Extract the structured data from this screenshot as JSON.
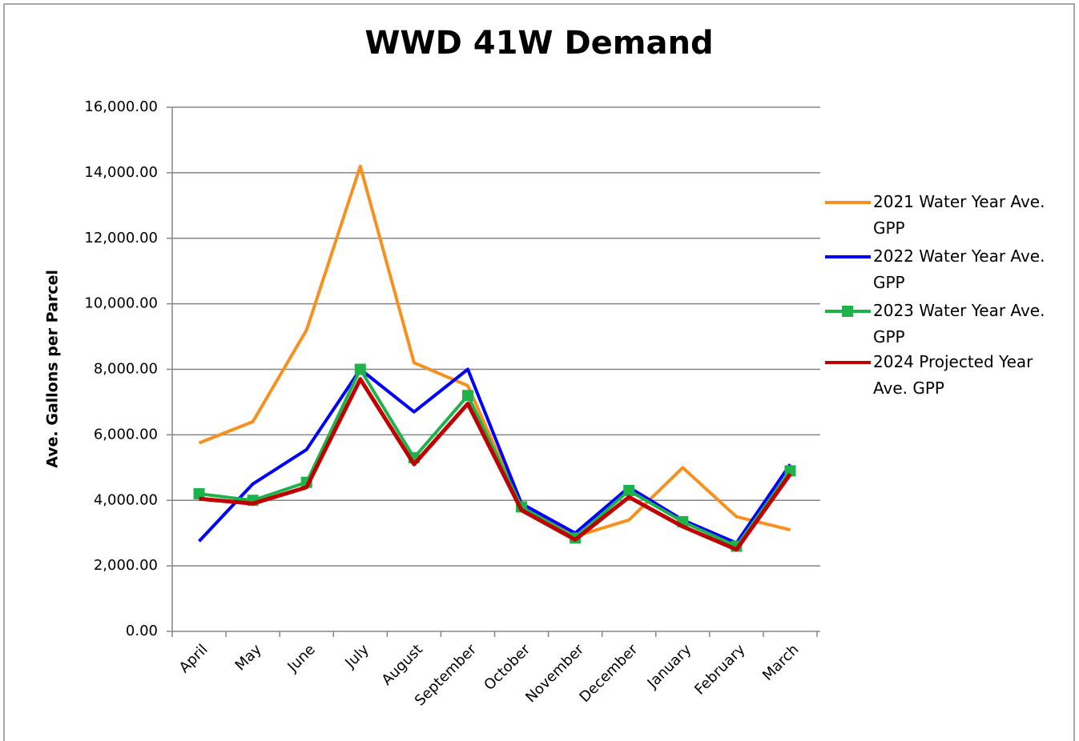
{
  "chart_data": {
    "type": "line",
    "title": "WWD 41W Demand",
    "y_label": "Ave. Gallons per Parcel",
    "categories": [
      "April",
      "May",
      "June",
      "July",
      "August",
      "September",
      "October",
      "November",
      "December",
      "January",
      "February",
      "March"
    ],
    "series": [
      {
        "name": "2021 Water Year Ave. GPP",
        "color": "#f7901e",
        "values": [
          5750,
          6400,
          9200,
          14200,
          8200,
          7500,
          3800,
          2900,
          3400,
          5000,
          3500,
          3100
        ]
      },
      {
        "name": "2022 Water Year Ave. GPP",
        "color": "#0000ff",
        "values": [
          2750,
          4500,
          5550,
          8000,
          6700,
          8000,
          3900,
          3000,
          4400,
          3400,
          2700,
          5100
        ]
      },
      {
        "name": "2023 Water Year Ave. GPP",
        "color": "#1db34a",
        "marker": "square",
        "values": [
          4200,
          4000,
          4550,
          8000,
          5300,
          7200,
          3800,
          2850,
          4300,
          3350,
          2600,
          4900
        ]
      },
      {
        "name": "2024 Projected Year Ave. GPP",
        "color": "#c00000",
        "values": [
          4050,
          3900,
          4400,
          7700,
          5100,
          6950,
          3700,
          2800,
          4100,
          3200,
          2500,
          4800
        ]
      }
    ],
    "ylim": [
      0,
      16000
    ],
    "yticks": [
      {
        "value": 0,
        "label": "0.00"
      },
      {
        "value": 2000,
        "label": "2,000.00"
      },
      {
        "value": 4000,
        "label": "4,000.00"
      },
      {
        "value": 6000,
        "label": "6,000.00"
      },
      {
        "value": 8000,
        "label": "8,000.00"
      },
      {
        "value": 10000,
        "label": "10,000.00"
      },
      {
        "value": 12000,
        "label": "12,000.00"
      },
      {
        "value": 14000,
        "label": "14,000.00"
      },
      {
        "value": 16000,
        "label": "16,000.00"
      }
    ],
    "grid": true,
    "legend": "right"
  }
}
